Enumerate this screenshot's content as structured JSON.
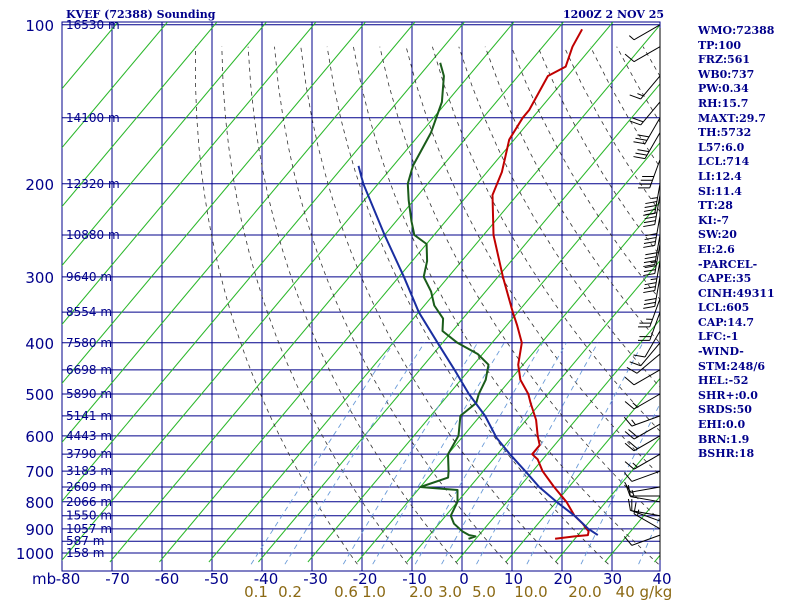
{
  "header": {
    "title": "KVEF (72388) Sounding",
    "time": "1200Z  2 NOV 25"
  },
  "indices": [
    "WMO:72388",
    "TP:100",
    "FRZ:561",
    "WB0:737",
    "PW:0.34",
    "RH:15.7",
    "MAXT:29.7",
    "TH:5732",
    "L57:6.0",
    "LCL:714",
    "LI:12.4",
    "SI:11.4",
    "TT:28",
    "KI:-7",
    "SW:20",
    "EI:2.6",
    "-PARCEL-",
    "CAPE:35",
    "CINH:49311",
    "LCL:605",
    "CAP:14.7",
    "LFC:-1",
    "-WIND-",
    "STM:248/6",
    "HEL:-52",
    "SHR+:0.0",
    "SRDS:50",
    "EHI:0.0",
    "BRN:1.9",
    "BSHR:18"
  ],
  "colors": {
    "grid": "#00008b",
    "dry_adiabat": "#2db82d",
    "moist_adiabat": "#333333",
    "mixing_ratio": "#6a9bd8",
    "temperature": "#c00000",
    "dewpoint": "#1a5c1a",
    "parcel": "#1a2ea0",
    "axis_label": "#00008b",
    "mixing_label": "#8b6914"
  },
  "chart_data": {
    "type": "skew-t",
    "title": "KVEF (72388) Sounding",
    "pressure_axis": {
      "ticks": [
        100,
        200,
        300,
        400,
        500,
        600,
        700,
        800,
        900,
        1000
      ],
      "label": "mb",
      "range": [
        100,
        1000
      ]
    },
    "temperature_axis": {
      "ticks": [
        -80,
        -70,
        -60,
        -50,
        -40,
        -30,
        -20,
        -10,
        0,
        10,
        20,
        30,
        40
      ],
      "range": [
        -80,
        40
      ]
    },
    "mixing_ratio_labels": [
      "0.1",
      "0.2",
      "0.6",
      "1.0",
      "2.0",
      "3.0",
      "5.0",
      "10.0",
      "20.0",
      "40 g/kg"
    ],
    "mixing_ratio_values": [
      0.1,
      0.2,
      0.6,
      1.0,
      2.0,
      3.0,
      5.0,
      10.0,
      20.0,
      40.0
    ],
    "height_labels": [
      {
        "p": 100,
        "label": "16530 m"
      },
      {
        "p": 150,
        "label": "14100 m"
      },
      {
        "p": 200,
        "label": "12320 m"
      },
      {
        "p": 250,
        "label": "10880 m"
      },
      {
        "p": 300,
        "label": "9640 m"
      },
      {
        "p": 350,
        "label": "8554 m"
      },
      {
        "p": 400,
        "label": "7580 m"
      },
      {
        "p": 450,
        "label": "6698 m"
      },
      {
        "p": 500,
        "label": "5890 m"
      },
      {
        "p": 550,
        "label": "5141 m"
      },
      {
        "p": 600,
        "label": "4443 m"
      },
      {
        "p": 650,
        "label": "3790 m"
      },
      {
        "p": 700,
        "label": "3183 m"
      },
      {
        "p": 750,
        "label": "2609 m"
      },
      {
        "p": 800,
        "label": "2066 m"
      },
      {
        "p": 850,
        "label": "1550 m"
      },
      {
        "p": 900,
        "label": "1057 m"
      },
      {
        "p": 950,
        "label": "587 m"
      },
      {
        "p": 1000,
        "label": "158 m"
      }
    ],
    "series": [
      {
        "name": "Temperature",
        "points": [
          {
            "p": 940,
            "t": 16.0
          },
          {
            "p": 930,
            "t": 19.5
          },
          {
            "p": 925,
            "t": 22.0
          },
          {
            "p": 910,
            "t": 21.5
          },
          {
            "p": 880,
            "t": 19.0
          },
          {
            "p": 850,
            "t": 16.0
          },
          {
            "p": 800,
            "t": 12.0
          },
          {
            "p": 750,
            "t": 7.0
          },
          {
            "p": 700,
            "t": 2.0
          },
          {
            "p": 665,
            "t": -1.0
          },
          {
            "p": 650,
            "t": -3.0
          },
          {
            "p": 625,
            "t": -3.0
          },
          {
            "p": 600,
            "t": -5.0
          },
          {
            "p": 560,
            "t": -8.0
          },
          {
            "p": 520,
            "t": -12.0
          },
          {
            "p": 500,
            "t": -14.0
          },
          {
            "p": 470,
            "t": -18.0
          },
          {
            "p": 440,
            "t": -21.0
          },
          {
            "p": 400,
            "t": -24.0
          },
          {
            "p": 370,
            "t": -28.0
          },
          {
            "p": 350,
            "t": -31.0
          },
          {
            "p": 300,
            "t": -39.0
          },
          {
            "p": 250,
            "t": -48.0
          },
          {
            "p": 210,
            "t": -55.0
          },
          {
            "p": 190,
            "t": -57.0
          },
          {
            "p": 165,
            "t": -61.0
          },
          {
            "p": 150,
            "t": -62.0
          },
          {
            "p": 145,
            "t": -62.0
          },
          {
            "p": 125,
            "t": -64.0
          },
          {
            "p": 120,
            "t": -62.0
          },
          {
            "p": 110,
            "t": -64.0
          },
          {
            "p": 102,
            "t": -65.0
          }
        ]
      },
      {
        "name": "Dewpoint",
        "points": [
          {
            "p": 940,
            "t": -1.5
          },
          {
            "p": 930,
            "t": -0.5
          },
          {
            "p": 925,
            "t": -2.0
          },
          {
            "p": 910,
            "t": -4.0
          },
          {
            "p": 880,
            "t": -7.0
          },
          {
            "p": 850,
            "t": -9.0
          },
          {
            "p": 800,
            "t": -10.0
          },
          {
            "p": 760,
            "t": -12.0
          },
          {
            "p": 750,
            "t": -20.0
          },
          {
            "p": 720,
            "t": -16.0
          },
          {
            "p": 700,
            "t": -17.0
          },
          {
            "p": 650,
            "t": -20.0
          },
          {
            "p": 600,
            "t": -21.0
          },
          {
            "p": 550,
            "t": -24.0
          },
          {
            "p": 520,
            "t": -23.0
          },
          {
            "p": 500,
            "t": -24.0
          },
          {
            "p": 470,
            "t": -25.0
          },
          {
            "p": 440,
            "t": -27.0
          },
          {
            "p": 420,
            "t": -31.0
          },
          {
            "p": 400,
            "t": -37.0
          },
          {
            "p": 380,
            "t": -42.0
          },
          {
            "p": 360,
            "t": -44.0
          },
          {
            "p": 340,
            "t": -48.0
          },
          {
            "p": 320,
            "t": -51.0
          },
          {
            "p": 300,
            "t": -55.0
          },
          {
            "p": 280,
            "t": -57.0
          },
          {
            "p": 260,
            "t": -60.0
          },
          {
            "p": 250,
            "t": -64.0
          },
          {
            "p": 235,
            "t": -67.0
          },
          {
            "p": 215,
            "t": -71.0
          },
          {
            "p": 200,
            "t": -74.0
          },
          {
            "p": 185,
            "t": -76.0
          },
          {
            "p": 160,
            "t": -78.0
          },
          {
            "p": 140,
            "t": -81.0
          },
          {
            "p": 125,
            "t": -85.0
          },
          {
            "p": 118,
            "t": -88.0
          }
        ]
      },
      {
        "name": "Parcel",
        "points": [
          {
            "p": 925,
            "t": 24.0
          },
          {
            "p": 900,
            "t": 21.0
          },
          {
            "p": 850,
            "t": 16.0
          },
          {
            "p": 800,
            "t": 10.0
          },
          {
            "p": 750,
            "t": 4.0
          },
          {
            "p": 700,
            "t": -1.5
          },
          {
            "p": 650,
            "t": -7.5
          },
          {
            "p": 605,
            "t": -13.0
          },
          {
            "p": 550,
            "t": -19.0
          },
          {
            "p": 500,
            "t": -26.0
          },
          {
            "p": 450,
            "t": -33.0
          },
          {
            "p": 400,
            "t": -41.0
          },
          {
            "p": 350,
            "t": -50.0
          },
          {
            "p": 300,
            "t": -59.0
          },
          {
            "p": 250,
            "t": -70.0
          },
          {
            "p": 200,
            "t": -83.0
          },
          {
            "p": 185,
            "t": -87.0
          }
        ]
      }
    ],
    "wind_barbs": [
      {
        "p": 925,
        "dir": 250,
        "spd": 10
      },
      {
        "p": 900,
        "dir": 300,
        "spd": 15
      },
      {
        "p": 870,
        "dir": 290,
        "spd": 10
      },
      {
        "p": 850,
        "dir": 280,
        "spd": 10
      },
      {
        "p": 800,
        "dir": 280,
        "spd": 10
      },
      {
        "p": 780,
        "dir": 270,
        "spd": 15
      },
      {
        "p": 750,
        "dir": 260,
        "spd": 10
      },
      {
        "p": 700,
        "dir": 250,
        "spd": 10
      },
      {
        "p": 650,
        "dir": 240,
        "spd": 15
      },
      {
        "p": 600,
        "dir": 240,
        "spd": 20
      },
      {
        "p": 570,
        "dir": 240,
        "spd": 20
      },
      {
        "p": 550,
        "dir": 250,
        "spd": 15
      },
      {
        "p": 500,
        "dir": 240,
        "spd": 15
      },
      {
        "p": 450,
        "dir": 240,
        "spd": 10
      },
      {
        "p": 420,
        "dir": 230,
        "spd": 10
      },
      {
        "p": 400,
        "dir": 220,
        "spd": 10
      },
      {
        "p": 380,
        "dir": 210,
        "spd": 10
      },
      {
        "p": 350,
        "dir": 200,
        "spd": 20
      },
      {
        "p": 330,
        "dir": 200,
        "spd": 25
      },
      {
        "p": 300,
        "dir": 190,
        "spd": 30
      },
      {
        "p": 280,
        "dir": 190,
        "spd": 35
      },
      {
        "p": 260,
        "dir": 190,
        "spd": 35
      },
      {
        "p": 250,
        "dir": 190,
        "spd": 40
      },
      {
        "p": 230,
        "dir": 190,
        "spd": 40
      },
      {
        "p": 210,
        "dir": 190,
        "spd": 40
      },
      {
        "p": 200,
        "dir": 190,
        "spd": 45
      },
      {
        "p": 180,
        "dir": 200,
        "spd": 40
      },
      {
        "p": 160,
        "dir": 210,
        "spd": 30
      },
      {
        "p": 150,
        "dir": 210,
        "spd": 30
      },
      {
        "p": 140,
        "dir": 220,
        "spd": 20
      },
      {
        "p": 125,
        "dir": 220,
        "spd": 15
      },
      {
        "p": 110,
        "dir": 240,
        "spd": 10
      },
      {
        "p": 100,
        "dir": 240,
        "spd": 5
      }
    ],
    "grid": true
  }
}
